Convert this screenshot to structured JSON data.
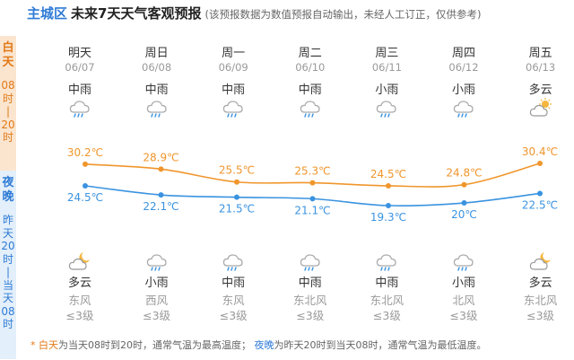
{
  "header": {
    "district": "主城区",
    "title": "未来7天天气客观预报",
    "note": "(该预报数据为数值预报自动输出，未经人工订正，仅供参考)"
  },
  "side": {
    "day_label": "白天",
    "day_range": [
      "08",
      "时",
      "|",
      "20",
      "时"
    ],
    "night_label": "夜晚",
    "night_range": [
      "昨",
      "天",
      "20",
      "时",
      "|",
      "当",
      "天",
      "08",
      "时"
    ]
  },
  "days": [
    {
      "name": "明天",
      "date": "06/07",
      "day_weather": "中雨",
      "day_icon": "rain-icon",
      "night_icon": "partly-cloudy-night-icon",
      "night_weather": "多云",
      "wind_dir": "东风",
      "wind_level": "≤3级",
      "high": "30.2℃",
      "low": "24.5℃"
    },
    {
      "name": "周日",
      "date": "06/08",
      "day_weather": "中雨",
      "day_icon": "rain-icon",
      "night_icon": "rain-icon",
      "night_weather": "小雨",
      "wind_dir": "西风",
      "wind_level": "≤3级",
      "high": "28.9℃",
      "low": "22.1℃"
    },
    {
      "name": "周一",
      "date": "06/09",
      "day_weather": "中雨",
      "day_icon": "rain-icon",
      "night_icon": "rain-icon",
      "night_weather": "中雨",
      "wind_dir": "东风",
      "wind_level": "≤3级",
      "high": "25.5℃",
      "low": "21.5℃"
    },
    {
      "name": "周二",
      "date": "06/10",
      "day_weather": "中雨",
      "day_icon": "rain-icon",
      "night_icon": "rain-icon",
      "night_weather": "中雨",
      "wind_dir": "东北风",
      "wind_level": "≤3级",
      "high": "25.3℃",
      "low": "21.1℃"
    },
    {
      "name": "周三",
      "date": "06/11",
      "day_weather": "小雨",
      "day_icon": "rain-icon",
      "night_icon": "rain-icon",
      "night_weather": "中雨",
      "wind_dir": "东北风",
      "wind_level": "≤3级",
      "high": "24.5℃",
      "low": "19.3℃"
    },
    {
      "name": "周四",
      "date": "06/12",
      "day_weather": "小雨",
      "day_icon": "rain-icon",
      "night_icon": "rain-icon",
      "night_weather": "小雨",
      "wind_dir": "北风",
      "wind_level": "≤3级",
      "high": "24.8℃",
      "low": "20℃"
    },
    {
      "name": "周五",
      "date": "06/13",
      "day_weather": "多云",
      "day_icon": "partly-cloudy-day-icon",
      "night_icon": "partly-cloudy-night-icon",
      "night_weather": "多云",
      "wind_dir": "东北风",
      "wind_level": "≤3级",
      "high": "30.4℃",
      "low": "22.5℃"
    }
  ],
  "footnote": {
    "star": "*",
    "day_word": "白天",
    "day_text": "为当天08时到20时，通常气温为最高温度；",
    "night_word": "夜晚",
    "night_text": "为昨天20时到当天08时，通常气温为最低温度。"
  },
  "colors": {
    "high": "#f0962c",
    "low": "#3a93e0",
    "day_bg": "#fbe5cf",
    "night_bg": "#e3effa"
  },
  "chart_data": {
    "type": "line",
    "categories": [
      "06/07",
      "06/08",
      "06/09",
      "06/10",
      "06/11",
      "06/12",
      "06/13"
    ],
    "series": [
      {
        "values": [
          30.2,
          28.9,
          25.5,
          25.3,
          24.5,
          24.8,
          30.4
        ]
      },
      {
        "values": [
          24.5,
          22.1,
          21.5,
          21.1,
          19.3,
          20,
          22.5
        ]
      }
    ]
  }
}
